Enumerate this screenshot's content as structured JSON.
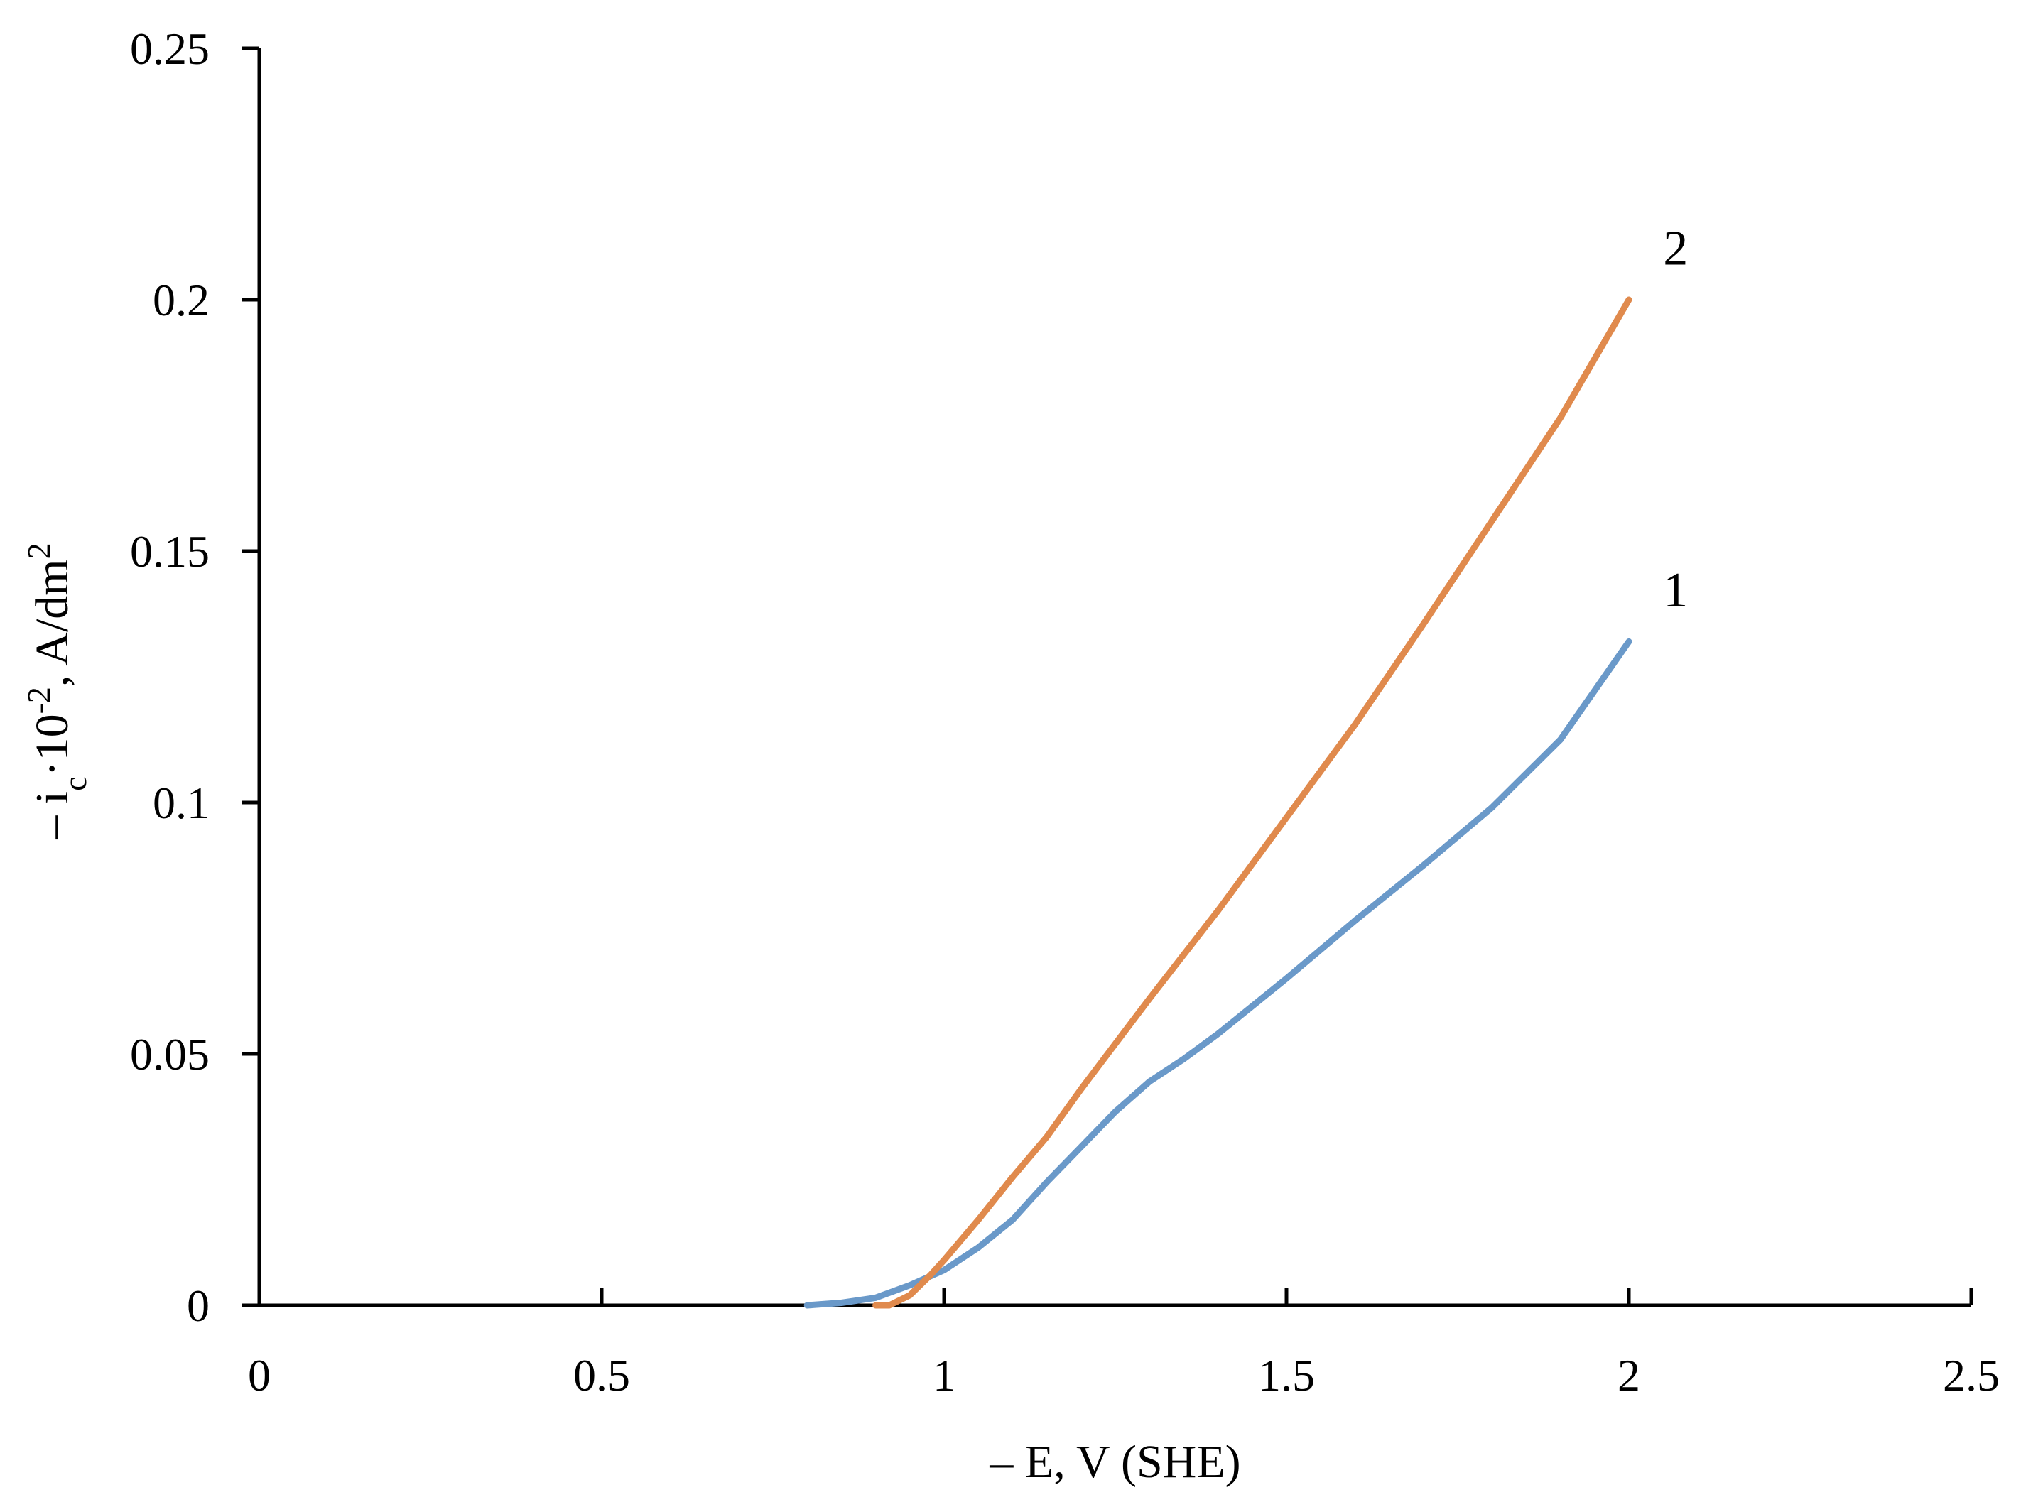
{
  "chart_data": {
    "type": "line",
    "title": "",
    "xlabel": "– E, V (SHE)",
    "ylabel": {
      "prefix": "– i",
      "sub": "c",
      "middle": "·10",
      "sup": "-2",
      "suffix": ", A/dm",
      "sup2": "2"
    },
    "xlim": [
      0,
      2.5
    ],
    "ylim": [
      0,
      0.25
    ],
    "x_ticks": [
      0,
      0.5,
      1,
      1.5,
      2,
      2.5
    ],
    "x_tick_labels": [
      "0",
      "0.5",
      "1",
      "1.5",
      "2",
      "2.5"
    ],
    "y_ticks": [
      0,
      0.05,
      0.1,
      0.15,
      0.2,
      0.25
    ],
    "y_tick_labels": [
      "0",
      "0.05",
      "0.1",
      "0.15",
      "0.2",
      "0.25"
    ],
    "grid": false,
    "legend": "none",
    "series": [
      {
        "name": "1",
        "color": "#6a99c9",
        "x": [
          0.8,
          0.85,
          0.9,
          0.95,
          1.0,
          1.05,
          1.1,
          1.15,
          1.2,
          1.25,
          1.3,
          1.35,
          1.4,
          1.5,
          1.6,
          1.7,
          1.8,
          1.9,
          2.0
        ],
        "y": [
          0.0,
          0.0005,
          0.0015,
          0.004,
          0.007,
          0.0115,
          0.017,
          0.0245,
          0.0315,
          0.0385,
          0.0445,
          0.049,
          0.054,
          0.065,
          0.0765,
          0.0875,
          0.099,
          0.1125,
          0.132
        ]
      },
      {
        "name": "2",
        "color": "#e08a4d",
        "x": [
          0.9,
          0.92,
          0.95,
          0.98,
          1.0,
          1.05,
          1.1,
          1.15,
          1.2,
          1.3,
          1.4,
          1.5,
          1.6,
          1.7,
          1.8,
          1.9,
          2.0
        ],
        "y": [
          0.0,
          0.0,
          0.002,
          0.006,
          0.009,
          0.017,
          0.0255,
          0.0335,
          0.043,
          0.061,
          0.0785,
          0.097,
          0.1155,
          0.1355,
          0.156,
          0.1765,
          0.2
        ]
      }
    ],
    "series_labels": [
      {
        "text": "1",
        "x": 2.05,
        "y": 0.139
      },
      {
        "text": "2",
        "x": 2.05,
        "y": 0.207
      }
    ]
  }
}
